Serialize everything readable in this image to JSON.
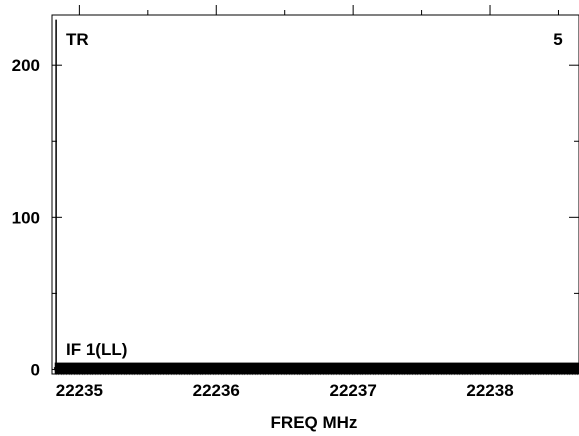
{
  "chart_data": {
    "type": "line",
    "xlabel": "FREQ MHz",
    "ylabel": "",
    "x_ticks": [
      22235,
      22236,
      22237,
      22238
    ],
    "y_ticks": [
      0,
      100,
      200
    ],
    "xlim": [
      22234.8,
      22238.65
    ],
    "ylim": [
      -3,
      233
    ],
    "grid": false,
    "annotations": {
      "top_left": "TR",
      "top_right": "5",
      "series_label": "IF 1(LL)"
    },
    "series": [
      {
        "name": "IF 1(LL)",
        "x_start": 22234.82,
        "x_end": 22238.65,
        "baseline": 0,
        "baseline_jitter": 1.5,
        "spike": {
          "x": 22234.83,
          "y": 230
        }
      }
    ]
  },
  "colors": {
    "line": "#000000",
    "axes": "#000000",
    "background": "#ffffff"
  }
}
